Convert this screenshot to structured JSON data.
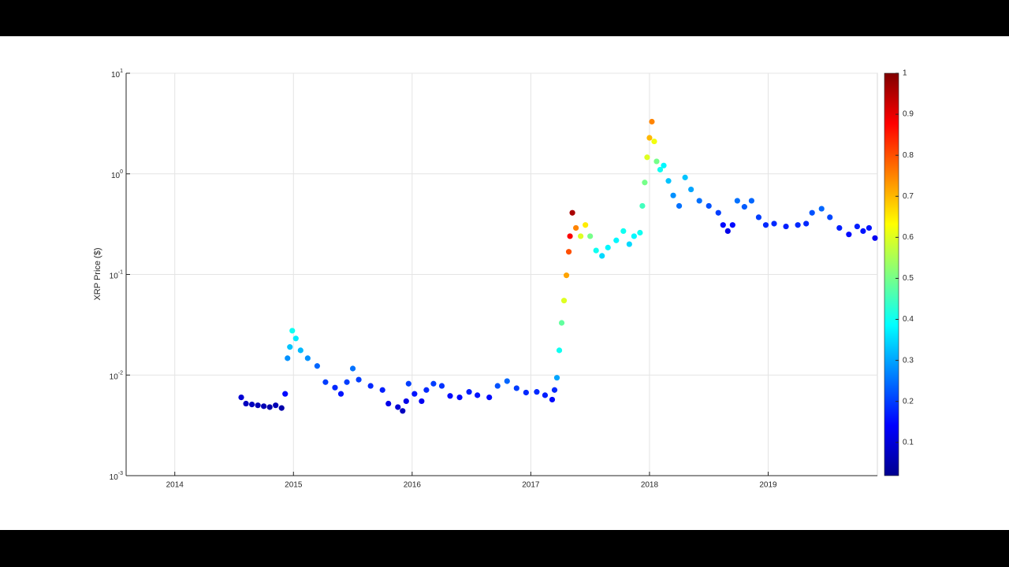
{
  "chart_data": {
    "type": "scatter",
    "ylabel": "XRP Price ($)",
    "log_y": true,
    "grid": true,
    "colormap": "jet",
    "xlim": [
      2013.59,
      2019.92
    ],
    "xticks": [
      2014,
      2015,
      2016,
      2017,
      2018,
      2019
    ],
    "ylim": [
      0.001,
      10
    ],
    "yticks": [
      {
        "value": 0.001,
        "label": "10^-3"
      },
      {
        "value": 0.01,
        "label": "10^-2"
      },
      {
        "value": 0.1,
        "label": "10^-1"
      },
      {
        "value": 1,
        "label": "10^0"
      },
      {
        "value": 10,
        "label": "10^1"
      }
    ],
    "clim": [
      0.019,
      1
    ],
    "cticks": [
      0.1,
      0.2,
      0.3,
      0.4,
      0.5,
      0.6,
      0.7,
      0.8,
      0.9,
      1
    ],
    "x": [
      2014.56,
      2014.6,
      2014.65,
      2014.7,
      2014.75,
      2014.8,
      2014.85,
      2014.9,
      2014.93,
      2014.95,
      2014.97,
      2014.99,
      2015.02,
      2015.06,
      2015.12,
      2015.2,
      2015.27,
      2015.35,
      2015.4,
      2015.45,
      2015.5,
      2015.55,
      2015.65,
      2015.75,
      2015.8,
      2015.88,
      2015.92,
      2015.95,
      2015.97,
      2016.02,
      2016.08,
      2016.12,
      2016.18,
      2016.25,
      2016.32,
      2016.4,
      2016.48,
      2016.55,
      2016.65,
      2016.72,
      2016.8,
      2016.88,
      2016.96,
      2017.05,
      2017.12,
      2017.18,
      2017.2,
      2017.22,
      2017.24,
      2017.26,
      2017.28,
      2017.3,
      2017.32,
      2017.33,
      2017.35,
      2017.38,
      2017.42,
      2017.46,
      2017.5,
      2017.55,
      2017.6,
      2017.65,
      2017.72,
      2017.78,
      2017.83,
      2017.87,
      2017.92,
      2017.94,
      2017.96,
      2017.98,
      2018.0,
      2018.02,
      2018.04,
      2018.06,
      2018.09,
      2018.12,
      2018.16,
      2018.2,
      2018.25,
      2018.3,
      2018.35,
      2018.42,
      2018.5,
      2018.58,
      2018.62,
      2018.66,
      2018.7,
      2018.74,
      2018.8,
      2018.86,
      2018.92,
      2018.98,
      2019.05,
      2019.15,
      2019.25,
      2019.32,
      2019.37,
      2019.45,
      2019.52,
      2019.6,
      2019.68,
      2019.75,
      2019.8,
      2019.85,
      2019.9
    ],
    "values": [
      0.006,
      0.0052,
      0.0051,
      0.005,
      0.0049,
      0.0048,
      0.005,
      0.0047,
      0.0065,
      0.0147,
      0.019,
      0.0276,
      0.0231,
      0.0176,
      0.0147,
      0.0123,
      0.0085,
      0.0075,
      0.0065,
      0.0085,
      0.0116,
      0.009,
      0.0078,
      0.0071,
      0.0052,
      0.0048,
      0.0044,
      0.0055,
      0.0082,
      0.0065,
      0.0055,
      0.0071,
      0.0082,
      0.0078,
      0.0062,
      0.006,
      0.0068,
      0.0063,
      0.006,
      0.0078,
      0.0087,
      0.0074,
      0.0067,
      0.0068,
      0.0063,
      0.0057,
      0.0071,
      0.0094,
      0.0176,
      0.033,
      0.055,
      0.098,
      0.168,
      0.24,
      0.41,
      0.29,
      0.24,
      0.31,
      0.24,
      0.173,
      0.153,
      0.185,
      0.218,
      0.27,
      0.2,
      0.24,
      0.26,
      0.48,
      0.82,
      1.46,
      2.28,
      3.3,
      2.1,
      1.33,
      1.1,
      1.21,
      0.85,
      0.61,
      0.48,
      0.92,
      0.7,
      0.54,
      0.48,
      0.41,
      0.31,
      0.27,
      0.31,
      0.54,
      0.47,
      0.54,
      0.37,
      0.31,
      0.32,
      0.3,
      0.31,
      0.32,
      0.41,
      0.45,
      0.37,
      0.29,
      0.25,
      0.3,
      0.27,
      0.29,
      0.23
    ],
    "color_values": [
      0.1,
      0.08,
      0.08,
      0.07,
      0.07,
      0.06,
      0.07,
      0.06,
      0.15,
      0.28,
      0.33,
      0.4,
      0.37,
      0.32,
      0.28,
      0.24,
      0.2,
      0.18,
      0.16,
      0.2,
      0.25,
      0.2,
      0.18,
      0.17,
      0.12,
      0.1,
      0.08,
      0.12,
      0.2,
      0.16,
      0.13,
      0.18,
      0.2,
      0.19,
      0.15,
      0.15,
      0.17,
      0.16,
      0.15,
      0.22,
      0.24,
      0.2,
      0.18,
      0.18,
      0.17,
      0.15,
      0.18,
      0.3,
      0.4,
      0.48,
      0.6,
      0.72,
      0.8,
      0.88,
      0.96,
      0.75,
      0.6,
      0.65,
      0.5,
      0.4,
      0.35,
      0.38,
      0.38,
      0.4,
      0.35,
      0.38,
      0.4,
      0.45,
      0.5,
      0.6,
      0.7,
      0.75,
      0.62,
      0.5,
      0.4,
      0.38,
      0.33,
      0.28,
      0.25,
      0.33,
      0.3,
      0.25,
      0.22,
      0.2,
      0.15,
      0.12,
      0.15,
      0.25,
      0.23,
      0.24,
      0.2,
      0.18,
      0.18,
      0.17,
      0.18,
      0.18,
      0.22,
      0.24,
      0.21,
      0.17,
      0.15,
      0.17,
      0.16,
      0.16,
      0.13
    ]
  }
}
